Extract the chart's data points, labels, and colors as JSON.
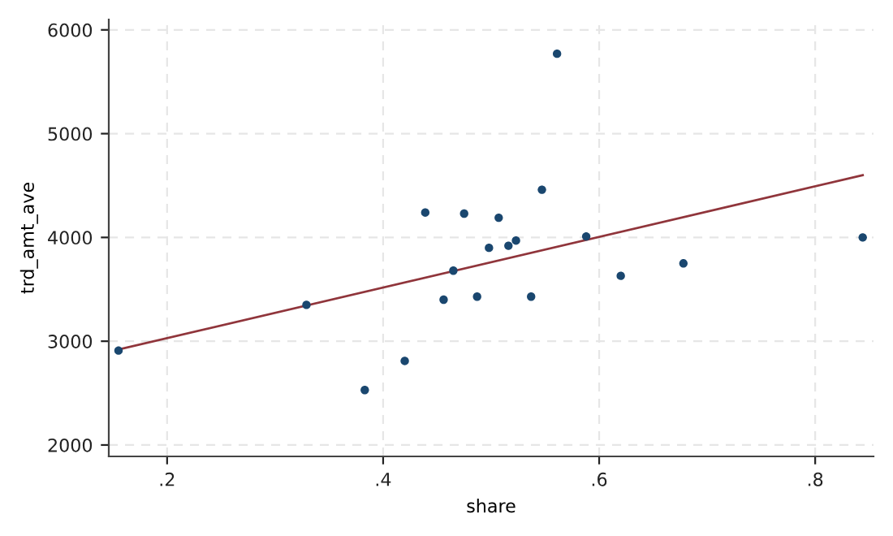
{
  "chart_data": {
    "type": "scatter",
    "xlabel": "share",
    "ylabel": "trd_amt_ave",
    "xlim": [
      0.146,
      0.854
    ],
    "ylim": [
      1890,
      6100
    ],
    "xticks": [
      {
        "value": 0.2,
        "label": ".2"
      },
      {
        "value": 0.4,
        "label": ".4"
      },
      {
        "value": 0.6,
        "label": ".6"
      },
      {
        "value": 0.8,
        "label": ".8"
      }
    ],
    "yticks": [
      2000,
      3000,
      4000,
      5000,
      6000
    ],
    "grid": true,
    "series": [
      {
        "color": "#1a476f",
        "marker": "circle",
        "x": [
          0.155,
          0.329,
          0.383,
          0.42,
          0.439,
          0.456,
          0.465,
          0.475,
          0.487,
          0.498,
          0.507,
          0.516,
          0.523,
          0.537,
          0.547,
          0.561,
          0.588,
          0.62,
          0.678,
          0.844
        ],
        "values": [
          2910,
          3350,
          2530,
          2810,
          4240,
          3400,
          3680,
          4230,
          3430,
          3900,
          4190,
          3920,
          3970,
          3430,
          4460,
          5770,
          4010,
          3630,
          3750,
          4000
        ]
      },
      {
        "type": "line",
        "color": "#90353b",
        "x": [
          0.155,
          0.844
        ],
        "values": [
          2920,
          4600
        ]
      }
    ]
  }
}
